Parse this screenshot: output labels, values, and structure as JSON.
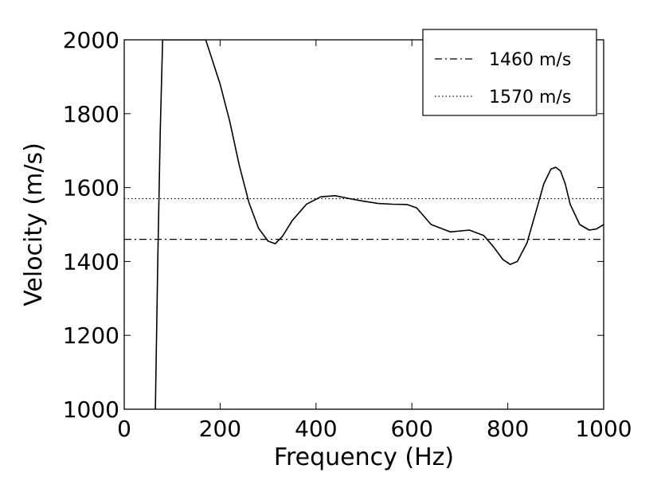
{
  "chart_data": {
    "type": "line",
    "title": "",
    "xlabel": "Frequency (Hz)",
    "ylabel": "Velocity (m/s)",
    "xlim": [
      0,
      1000
    ],
    "ylim": [
      1000,
      2000
    ],
    "xticks": [
      "0",
      "200",
      "400",
      "600",
      "800",
      "1000"
    ],
    "yticks": [
      "1000",
      "1200",
      "1400",
      "1600",
      "1800",
      "2000"
    ],
    "grid": false,
    "legend_position": "top-right",
    "series": [
      {
        "style": "solid",
        "color": "#000000",
        "x": [
          65,
          70,
          75,
          80,
          170,
          180,
          200,
          220,
          240,
          260,
          280,
          300,
          315,
          330,
          350,
          380,
          410,
          440,
          470,
          500,
          530,
          560,
          590,
          610,
          640,
          680,
          720,
          750,
          770,
          790,
          805,
          820,
          840,
          860,
          875,
          890,
          900,
          910,
          920,
          930,
          950,
          970,
          985,
          1000
        ],
        "y": [
          1000,
          1400,
          1750,
          2000,
          2000,
          1960,
          1880,
          1780,
          1660,
          1560,
          1490,
          1455,
          1448,
          1468,
          1510,
          1555,
          1575,
          1578,
          1570,
          1563,
          1557,
          1555,
          1554,
          1545,
          1500,
          1480,
          1485,
          1470,
          1440,
          1405,
          1392,
          1400,
          1450,
          1540,
          1610,
          1650,
          1655,
          1645,
          1610,
          1555,
          1500,
          1485,
          1488,
          1500
        ]
      },
      {
        "name": "1460 m/s",
        "style": "dashdot",
        "color": "#000000",
        "x": [
          0,
          1000
        ],
        "y": [
          1460,
          1460
        ]
      },
      {
        "name": "1570 m/s",
        "style": "dotted",
        "color": "#000000",
        "x": [
          0,
          1000
        ],
        "y": [
          1570,
          1570
        ]
      }
    ]
  }
}
